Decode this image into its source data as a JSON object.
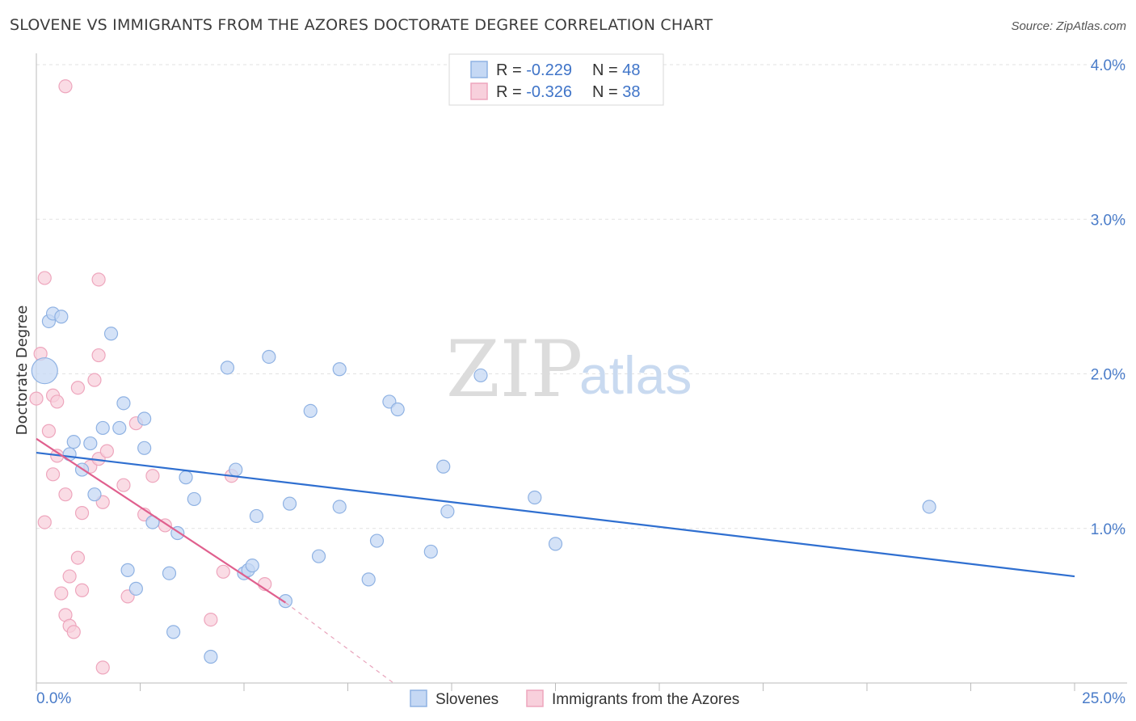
{
  "title": "SLOVENE VS IMMIGRANTS FROM THE AZORES DOCTORATE DEGREE CORRELATION CHART",
  "source": "Source: ZipAtlas.com",
  "watermark": {
    "zip": "ZIP",
    "atlas": "atlas"
  },
  "colors": {
    "blue_fill": "#c5d8f4",
    "blue_stroke": "#8fb2e3",
    "blue_line": "#2f6fd0",
    "pink_fill": "#f8d0dc",
    "pink_stroke": "#eea6bd",
    "pink_line": "#e0608e",
    "grid": "#e2e2e2",
    "axis": "#bbbbbb"
  },
  "legend": {
    "rows": [
      {
        "r_label": "R = ",
        "r_value": "-0.229",
        "n_label": "N = ",
        "n_value": "48"
      },
      {
        "r_label": "R = ",
        "r_value": "-0.326",
        "n_label": "N = ",
        "n_value": "38"
      }
    ]
  },
  "chart_data": {
    "type": "scatter",
    "title": "SLOVENE VS IMMIGRANTS FROM THE AZORES DOCTORATE DEGREE CORRELATION CHART",
    "xlabel": "",
    "ylabel": "Doctorate Degree",
    "xlim": [
      0,
      25
    ],
    "ylim": [
      0,
      4.15
    ],
    "x_tick_labels": [
      "0.0%",
      "25.0%"
    ],
    "y_ticks": [
      1.0,
      2.0,
      3.0,
      4.0
    ],
    "y_tick_labels": [
      "1.0%",
      "2.0%",
      "3.0%",
      "4.0%"
    ],
    "legend_position": "top-center",
    "series": [
      {
        "name": "Slovenes",
        "r": -0.229,
        "n": 48,
        "trend": {
          "x0": 0,
          "y0": 1.49,
          "x1": 25,
          "y1": 0.69
        },
        "points": [
          {
            "x": 0.2,
            "y": 2.02,
            "big": true
          },
          {
            "x": 0.3,
            "y": 2.34
          },
          {
            "x": 0.4,
            "y": 2.39
          },
          {
            "x": 0.6,
            "y": 2.37
          },
          {
            "x": 1.8,
            "y": 2.26
          },
          {
            "x": 0.8,
            "y": 1.48
          },
          {
            "x": 0.9,
            "y": 1.56
          },
          {
            "x": 1.1,
            "y": 1.38
          },
          {
            "x": 1.3,
            "y": 1.55
          },
          {
            "x": 1.4,
            "y": 1.22
          },
          {
            "x": 1.6,
            "y": 1.65
          },
          {
            "x": 2.0,
            "y": 1.65
          },
          {
            "x": 2.1,
            "y": 1.81
          },
          {
            "x": 2.6,
            "y": 1.71
          },
          {
            "x": 2.6,
            "y": 1.52
          },
          {
            "x": 2.8,
            "y": 1.04
          },
          {
            "x": 3.2,
            "y": 0.71
          },
          {
            "x": 3.4,
            "y": 0.97
          },
          {
            "x": 3.6,
            "y": 1.33
          },
          {
            "x": 3.8,
            "y": 1.19
          },
          {
            "x": 2.2,
            "y": 0.73
          },
          {
            "x": 2.4,
            "y": 0.61
          },
          {
            "x": 3.3,
            "y": 0.33
          },
          {
            "x": 4.2,
            "y": 0.17
          },
          {
            "x": 4.6,
            "y": 2.04
          },
          {
            "x": 4.8,
            "y": 1.38
          },
          {
            "x": 5.0,
            "y": 0.71
          },
          {
            "x": 5.1,
            "y": 0.73
          },
          {
            "x": 5.2,
            "y": 0.76
          },
          {
            "x": 5.3,
            "y": 1.08
          },
          {
            "x": 5.6,
            "y": 2.11
          },
          {
            "x": 6.1,
            "y": 1.16
          },
          {
            "x": 6.0,
            "y": 0.53
          },
          {
            "x": 6.6,
            "y": 1.76
          },
          {
            "x": 6.8,
            "y": 0.82
          },
          {
            "x": 7.3,
            "y": 2.03
          },
          {
            "x": 7.3,
            "y": 1.14
          },
          {
            "x": 8.0,
            "y": 0.67
          },
          {
            "x": 8.2,
            "y": 0.92
          },
          {
            "x": 8.5,
            "y": 1.82
          },
          {
            "x": 8.7,
            "y": 1.77
          },
          {
            "x": 9.5,
            "y": 0.85
          },
          {
            "x": 9.8,
            "y": 1.4
          },
          {
            "x": 9.9,
            "y": 1.11
          },
          {
            "x": 10.7,
            "y": 1.99
          },
          {
            "x": 12.0,
            "y": 1.2
          },
          {
            "x": 12.5,
            "y": 0.9
          },
          {
            "x": 21.5,
            "y": 1.14
          }
        ]
      },
      {
        "name": "Immigrants from the Azores",
        "r": -0.326,
        "n": 38,
        "trend": {
          "x0": 0,
          "y0": 1.58,
          "x1": 6.0,
          "y1": 0.52,
          "dash_x1": 8.6,
          "dash_y1": 0.0
        },
        "points": [
          {
            "x": 0.0,
            "y": 1.84
          },
          {
            "x": 0.1,
            "y": 2.13
          },
          {
            "x": 0.2,
            "y": 2.62
          },
          {
            "x": 0.2,
            "y": 1.04
          },
          {
            "x": 0.3,
            "y": 1.63
          },
          {
            "x": 0.4,
            "y": 1.86
          },
          {
            "x": 0.4,
            "y": 1.35
          },
          {
            "x": 0.5,
            "y": 1.82
          },
          {
            "x": 0.5,
            "y": 1.47
          },
          {
            "x": 0.6,
            "y": 0.58
          },
          {
            "x": 0.7,
            "y": 0.44
          },
          {
            "x": 0.7,
            "y": 3.86
          },
          {
            "x": 0.7,
            "y": 1.22
          },
          {
            "x": 0.8,
            "y": 0.37
          },
          {
            "x": 0.8,
            "y": 0.69
          },
          {
            "x": 0.9,
            "y": 0.33
          },
          {
            "x": 1.0,
            "y": 1.91
          },
          {
            "x": 1.0,
            "y": 0.81
          },
          {
            "x": 1.1,
            "y": 1.1
          },
          {
            "x": 1.1,
            "y": 0.6
          },
          {
            "x": 1.3,
            "y": 1.4
          },
          {
            "x": 1.4,
            "y": 1.96
          },
          {
            "x": 1.5,
            "y": 2.61
          },
          {
            "x": 1.5,
            "y": 2.12
          },
          {
            "x": 1.5,
            "y": 1.45
          },
          {
            "x": 1.6,
            "y": 1.17
          },
          {
            "x": 1.6,
            "y": 0.1
          },
          {
            "x": 1.7,
            "y": 1.5
          },
          {
            "x": 2.1,
            "y": 1.28
          },
          {
            "x": 2.2,
            "y": 0.56
          },
          {
            "x": 2.4,
            "y": 1.68
          },
          {
            "x": 2.6,
            "y": 1.09
          },
          {
            "x": 2.8,
            "y": 1.34
          },
          {
            "x": 3.1,
            "y": 1.02
          },
          {
            "x": 4.2,
            "y": 0.41
          },
          {
            "x": 4.5,
            "y": 0.72
          },
          {
            "x": 4.7,
            "y": 1.34
          },
          {
            "x": 5.5,
            "y": 0.64
          }
        ]
      }
    ],
    "legend_labels": [
      "Slovenes",
      "Immigrants from the Azores"
    ]
  }
}
